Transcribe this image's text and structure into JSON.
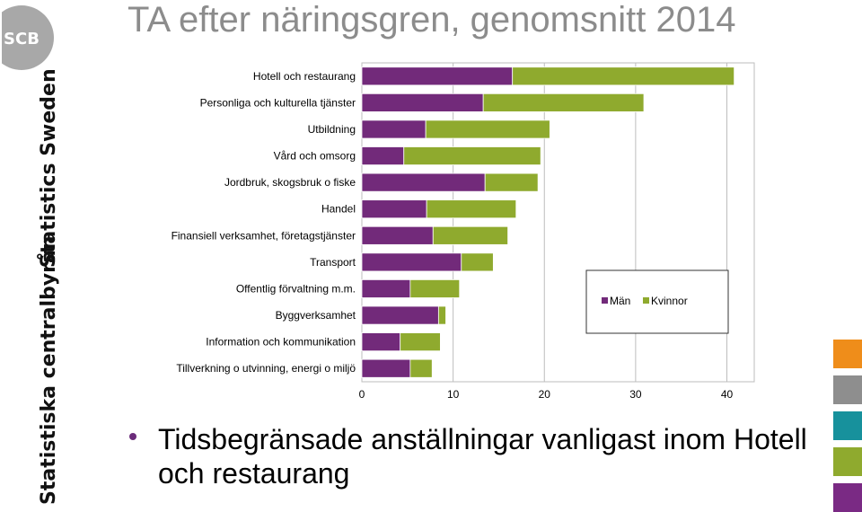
{
  "page": {
    "title": "TA efter näringsgren, genomsnitt 2014",
    "caption": "Tidsbegränsade anställningar vanligast inom Hotell och restaurang",
    "logo_text": "SCB",
    "org_sv": "Statistiska centralbyrån",
    "org_en": "Statistics Sweden"
  },
  "colors": {
    "men": "#722a7a",
    "women": "#8faa2e",
    "squares": [
      "#ef8d1a",
      "#8e8e8e",
      "#17919c",
      "#8faa2e",
      "#7a2a84"
    ]
  },
  "chart_data": {
    "type": "bar",
    "orientation": "horizontal",
    "stacked": true,
    "title": "",
    "xlabel": "",
    "ylabel": "",
    "xlim": [
      0,
      43
    ],
    "xticks": [
      0,
      10,
      20,
      30,
      40
    ],
    "grid": true,
    "legend_position": "right",
    "categories": [
      "Hotell och restaurang",
      "Personliga och kulturella tjänster",
      "Utbildning",
      "Vård och omsorg",
      "Jordbruk, skogsbruk o fiske",
      "Handel",
      "Finansiell verksamhet, företagstjänster",
      "Transport",
      "Offentlig förvaltning m.m.",
      "Byggverksamhet",
      "Information och kommunikation",
      "Tillverkning o utvinning, energi o miljö"
    ],
    "series": [
      {
        "name": "Män",
        "values": [
          16.5,
          13.3,
          7.0,
          4.6,
          13.5,
          7.1,
          7.8,
          10.9,
          5.3,
          8.4,
          4.2,
          5.3
        ]
      },
      {
        "name": "Kvinnor",
        "values": [
          24.3,
          17.6,
          13.6,
          15.0,
          5.8,
          9.8,
          8.2,
          3.5,
          5.4,
          0.8,
          4.4,
          2.4
        ]
      }
    ]
  }
}
